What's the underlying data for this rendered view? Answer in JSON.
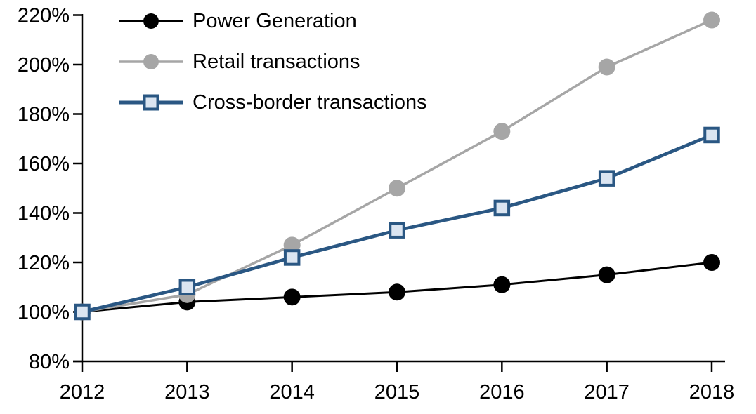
{
  "chart_data": {
    "type": "line",
    "x": [
      2012,
      2013,
      2014,
      2015,
      2016,
      2017,
      2018
    ],
    "series": [
      {
        "name": "Power Generation",
        "color": "#000000",
        "marker": "circle",
        "marker_fill": "#000000",
        "values": [
          100,
          104,
          106,
          108,
          111,
          115,
          120
        ]
      },
      {
        "name": "Retail transactions",
        "color": "#A6A6A6",
        "marker": "circle",
        "marker_fill": "#A6A6A6",
        "values": [
          100,
          107,
          127,
          150,
          173,
          199,
          218
        ]
      },
      {
        "name": "Cross-border transactions",
        "color": "#2A5783",
        "marker": "square",
        "marker_fill": "#DBE5F1",
        "values": [
          100,
          110,
          122,
          133,
          142,
          154,
          171.5
        ]
      }
    ],
    "title": "",
    "xlabel": "",
    "ylabel": "",
    "ylim": [
      80,
      220
    ],
    "xlim": [
      2012,
      2018
    ],
    "grid": false,
    "legend_position": "top-left",
    "y_axis": {
      "tick_values": [
        220,
        200,
        180,
        160,
        140,
        120,
        100,
        80
      ],
      "tick_labels": [
        "220%",
        "200%",
        "180%",
        "160%",
        "140%",
        "120%",
        "100%",
        "80%"
      ]
    },
    "x_axis": {
      "tick_values": [
        2012,
        2013,
        2014,
        2015,
        2016,
        2017,
        2018
      ],
      "tick_labels": [
        "2012",
        "2013",
        "2014",
        "2015",
        "2016",
        "2017",
        "2018"
      ]
    },
    "axis_color": "#000000"
  }
}
